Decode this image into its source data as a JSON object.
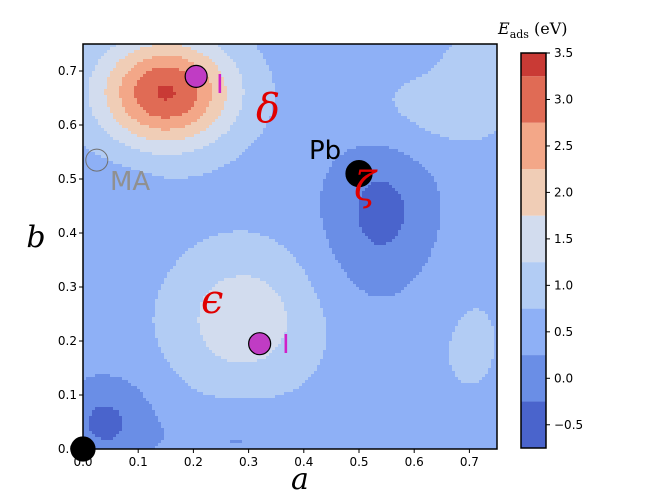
{
  "chart_data": {
    "type": "contour",
    "title": "",
    "xlabel": "a",
    "ylabel": "b",
    "xlim": [
      0.0,
      0.75
    ],
    "ylim": [
      0.0,
      0.75
    ],
    "xticks": [
      "0.0",
      "0.1",
      "0.2",
      "0.3",
      "0.4",
      "0.5",
      "0.6",
      "0.7"
    ],
    "yticks": [
      "0.0",
      "0.1",
      "0.2",
      "0.3",
      "0.4",
      "0.5",
      "0.6",
      "0.7"
    ],
    "colorbar": {
      "label_main": "E",
      "label_sub": "ads",
      "label_unit": " (eV)",
      "min": -0.75,
      "max": 3.5,
      "ticks": [
        "−0.5",
        "0.0",
        "0.5",
        "1.0",
        "1.5",
        "2.0",
        "2.5",
        "3.0",
        "3.5"
      ],
      "levels": [
        -0.75,
        -0.25,
        0.25,
        0.75,
        1.25,
        1.75,
        2.25,
        2.75,
        3.25,
        3.5
      ],
      "colors": [
        "#4a64cc",
        "#6a8ee6",
        "#8eb0f6",
        "#b2ccf4",
        "#d2dcee",
        "#f0cdb6",
        "#f3a788",
        "#e06b55",
        "#c93a35"
      ]
    },
    "features": [
      {
        "label": "δ",
        "peak": 3.2,
        "a": 0.15,
        "b": 0.66
      },
      {
        "label": "ε",
        "peak": 1.7,
        "a": 0.31,
        "b": 0.22
      },
      {
        "label": "ζ",
        "trough": -0.45,
        "a": 0.53,
        "b": 0.45
      }
    ],
    "sites": [
      {
        "label": "I",
        "a": 0.205,
        "b": 0.69,
        "color": "#c03cc4"
      },
      {
        "label": "I",
        "a": 0.32,
        "b": 0.195,
        "color": "#c03cc4"
      },
      {
        "label": "Pb",
        "a": 0.5,
        "b": 0.51,
        "color": "#000000"
      },
      {
        "label": "MA",
        "a": 0.025,
        "b": 0.535,
        "color": "#ffffff"
      },
      {
        "label": "",
        "a": 0.0,
        "b": 0.0,
        "color": "#000000"
      }
    ],
    "annotations": {
      "delta": "δ",
      "epsilon": "ϵ",
      "zeta": "ζ",
      "pb": "Pb",
      "ma": "MA",
      "i_top": "I",
      "i_bottom": "I"
    }
  }
}
